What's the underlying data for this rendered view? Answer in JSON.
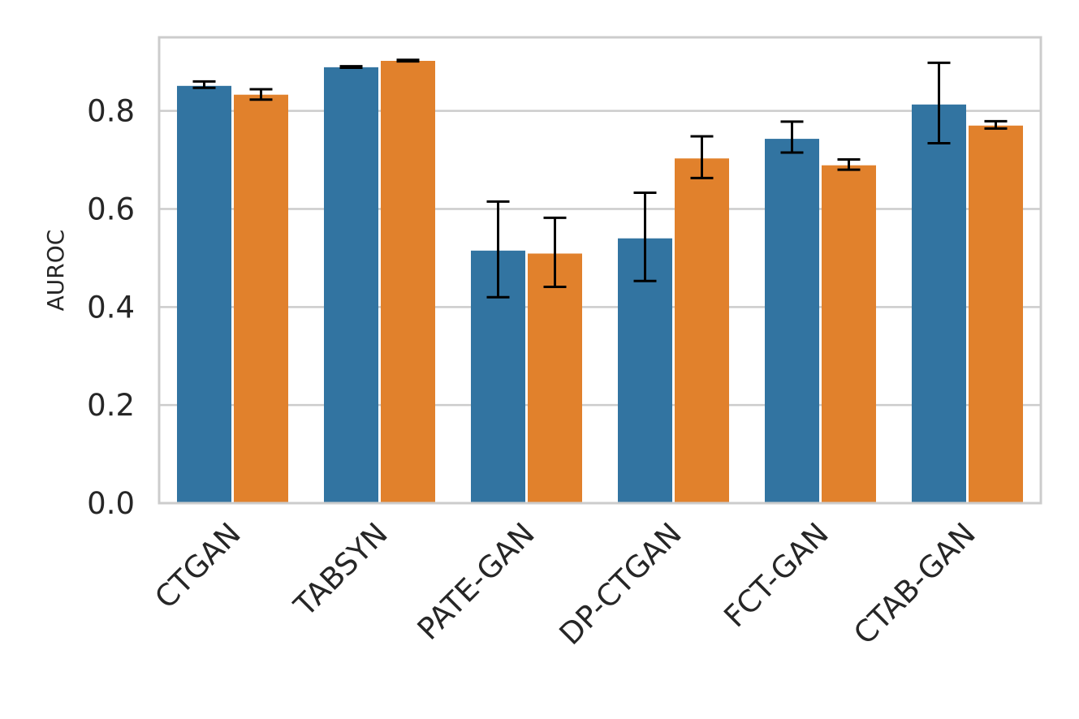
{
  "chart_data": {
    "type": "bar",
    "title": "",
    "xlabel": "",
    "ylabel": "AUROC",
    "ylim": [
      0,
      0.95
    ],
    "yticks": [
      "0.0",
      "0.2",
      "0.4",
      "0.6",
      "0.8"
    ],
    "grid": true,
    "categories": [
      "CTGAN",
      "TABSYN",
      "PATE-GAN",
      "DP-CTGAN",
      "FCT-GAN",
      "CTAB-GAN"
    ],
    "series": [
      {
        "name": "series 1",
        "color": "#3274a1",
        "values": [
          0.851,
          0.889,
          0.515,
          0.54,
          0.743,
          0.813
        ],
        "err_low": [
          0.847,
          0.888,
          0.42,
          0.453,
          0.715,
          0.734
        ],
        "err_high": [
          0.86,
          0.891,
          0.615,
          0.633,
          0.778,
          0.898
        ]
      },
      {
        "name": "series 2",
        "color": "#e1812c",
        "values": [
          0.833,
          0.902,
          0.509,
          0.703,
          0.689,
          0.77
        ],
        "err_low": [
          0.823,
          0.901,
          0.441,
          0.663,
          0.68,
          0.764
        ],
        "err_high": [
          0.844,
          0.904,
          0.582,
          0.748,
          0.701,
          0.779
        ]
      }
    ]
  }
}
